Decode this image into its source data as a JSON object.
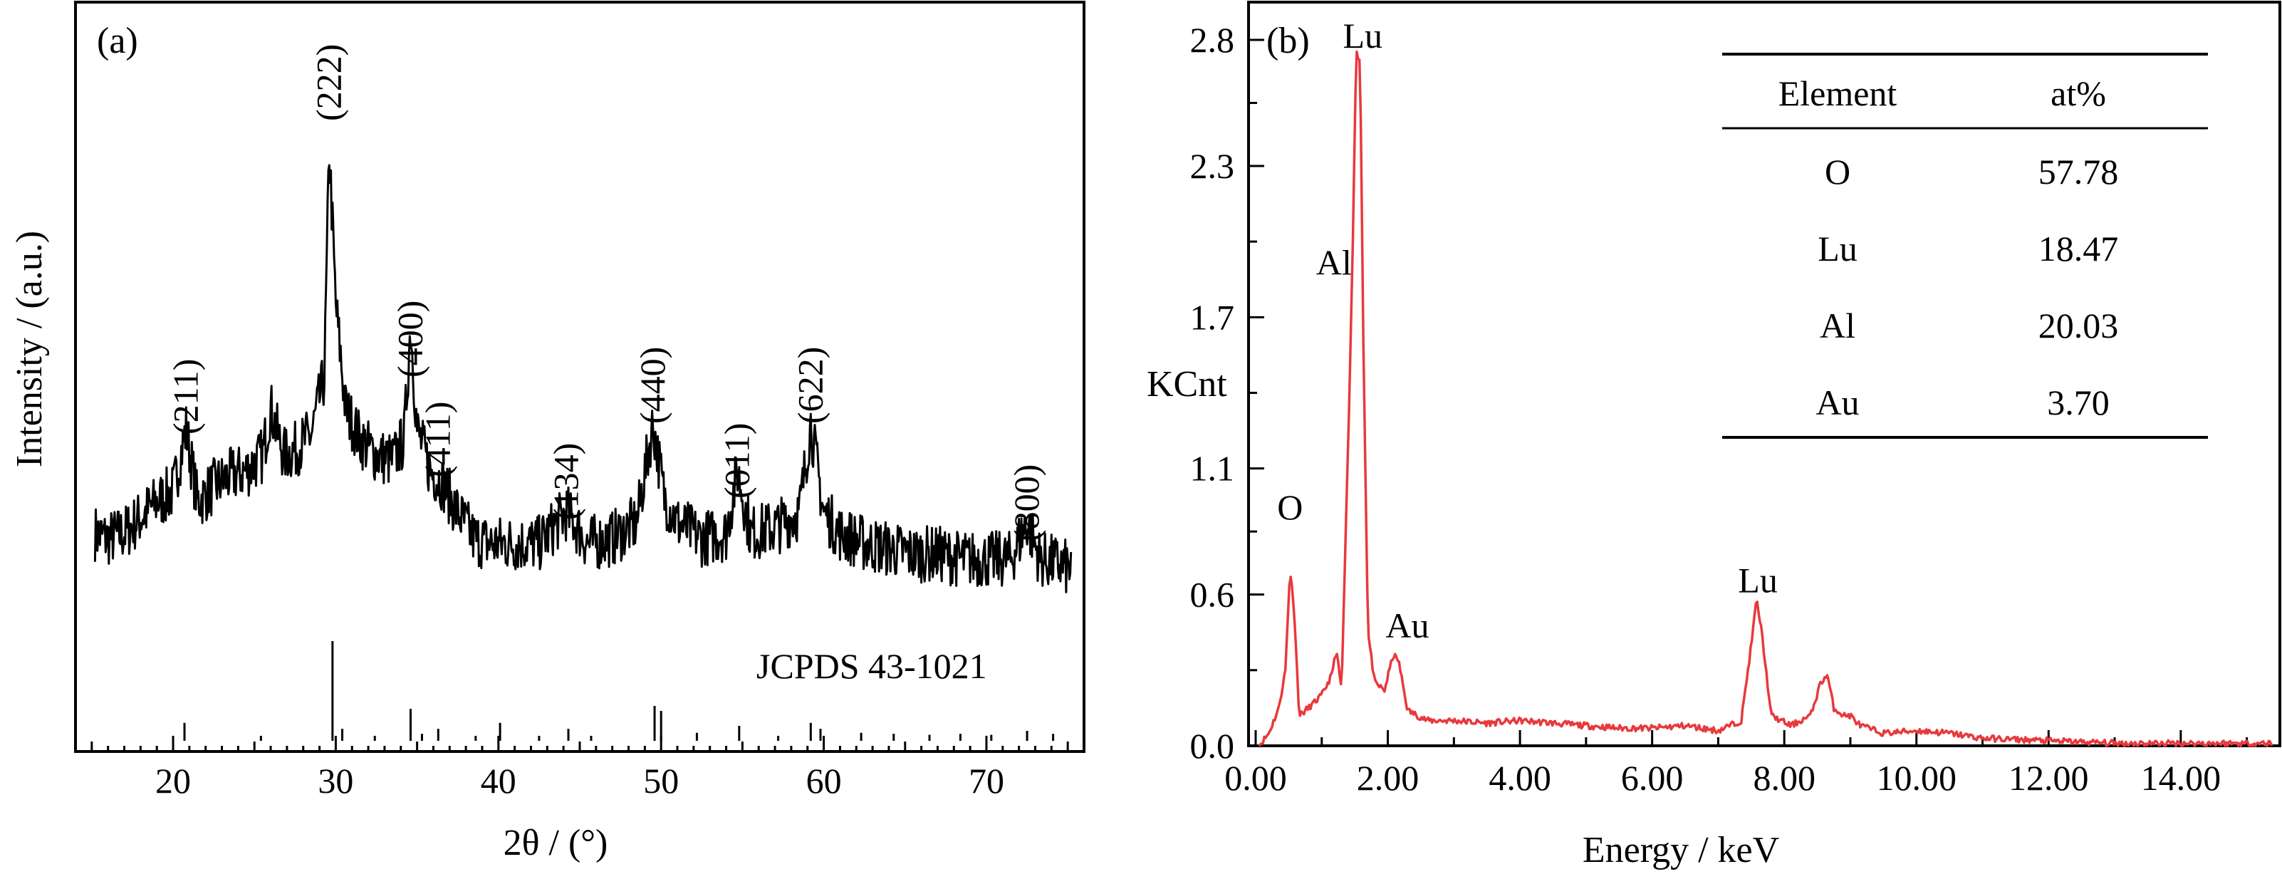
{
  "chart_data": [
    {
      "panel": "(a)",
      "type": "line",
      "xlabel": "2θ / (°)",
      "ylabel": "Intensity / (a.u.)",
      "xlim": [
        14,
        76
      ],
      "xticks": [
        20,
        30,
        40,
        50,
        60,
        70
      ],
      "yticks": [],
      "grid": false,
      "series": [
        {
          "values_kind": "xrd-pattern",
          "points": [
            [
              15.2,
              0.18
            ],
            [
              16,
              0.17
            ],
            [
              17,
              0.18
            ],
            [
              18,
              0.21
            ],
            [
              19,
              0.24
            ],
            [
              20,
              0.26
            ],
            [
              20.8,
              0.38
            ],
            [
              21.5,
              0.24
            ],
            [
              22.5,
              0.27
            ],
            [
              23.5,
              0.29
            ],
            [
              24.5,
              0.3
            ],
            [
              25.5,
              0.33
            ],
            [
              26,
              0.42
            ],
            [
              26.8,
              0.33
            ],
            [
              27.5,
              0.34
            ],
            [
              28.5,
              0.37
            ],
            [
              29.3,
              0.48
            ],
            [
              29.6,
              0.92
            ],
            [
              30,
              0.62
            ],
            [
              30.6,
              0.42
            ],
            [
              31.5,
              0.36
            ],
            [
              32.5,
              0.33
            ],
            [
              33.5,
              0.32
            ],
            [
              34.2,
              0.36
            ],
            [
              34.6,
              0.58
            ],
            [
              35,
              0.38
            ],
            [
              35.8,
              0.3
            ],
            [
              36.5,
              0.28
            ],
            [
              37.5,
              0.22
            ],
            [
              38.5,
              0.17
            ],
            [
              39.5,
              0.16
            ],
            [
              41,
              0.16
            ],
            [
              42.5,
              0.16
            ],
            [
              44.2,
              0.22
            ],
            [
              45.5,
              0.16
            ],
            [
              47,
              0.17
            ],
            [
              48.5,
              0.2
            ],
            [
              49.5,
              0.39
            ],
            [
              50.2,
              0.25
            ],
            [
              51,
              0.2
            ],
            [
              52.5,
              0.17
            ],
            [
              54,
              0.18
            ],
            [
              54.7,
              0.3
            ],
            [
              55.5,
              0.18
            ],
            [
              57,
              0.19
            ],
            [
              58.5,
              0.22
            ],
            [
              59.2,
              0.39
            ],
            [
              60,
              0.22
            ],
            [
              61,
              0.18
            ],
            [
              62.5,
              0.16
            ],
            [
              64,
              0.15
            ],
            [
              65.5,
              0.14
            ],
            [
              67,
              0.14
            ],
            [
              68.5,
              0.13
            ],
            [
              70,
              0.13
            ],
            [
              71.5,
              0.13
            ],
            [
              72.5,
              0.2
            ],
            [
              73.3,
              0.13
            ],
            [
              74.5,
              0.12
            ],
            [
              75.2,
              0.11
            ]
          ]
        }
      ],
      "annotations": [
        {
          "label": "(211)",
          "x": 20.8
        },
        {
          "label": "(222)",
          "x": 29.6
        },
        {
          "label": "(400)",
          "x": 34.6
        },
        {
          "label": "(411)",
          "x": 36.3
        },
        {
          "label": "(134)",
          "x": 44.2
        },
        {
          "label": "(440)",
          "x": 49.5
        },
        {
          "label": "(011)",
          "x": 54.7
        },
        {
          "label": "(622)",
          "x": 59.2
        },
        {
          "label": "(800)",
          "x": 72.5
        }
      ],
      "reference": {
        "label": "JCPDS 43-1021",
        "lines": [
          {
            "x": 20.7,
            "h": 0.18
          },
          {
            "x": 25.4,
            "h": 0.05
          },
          {
            "x": 29.8,
            "h": 1.0
          },
          {
            "x": 30.4,
            "h": 0.12
          },
          {
            "x": 32.4,
            "h": 0.05
          },
          {
            "x": 34.6,
            "h": 0.32
          },
          {
            "x": 35.3,
            "h": 0.07
          },
          {
            "x": 36.3,
            "h": 0.12
          },
          {
            "x": 38.6,
            "h": 0.05
          },
          {
            "x": 40.1,
            "h": 0.18
          },
          {
            "x": 42.5,
            "h": 0.05
          },
          {
            "x": 44.3,
            "h": 0.12
          },
          {
            "x": 45.7,
            "h": 0.05
          },
          {
            "x": 49.6,
            "h": 0.35
          },
          {
            "x": 50.0,
            "h": 0.3
          },
          {
            "x": 52.2,
            "h": 0.08
          },
          {
            "x": 54.8,
            "h": 0.15
          },
          {
            "x": 57.2,
            "h": 0.05
          },
          {
            "x": 59.2,
            "h": 0.18
          },
          {
            "x": 59.8,
            "h": 0.12
          },
          {
            "x": 62.3,
            "h": 0.08
          },
          {
            "x": 64.3,
            "h": 0.07
          },
          {
            "x": 66.5,
            "h": 0.06
          },
          {
            "x": 68.4,
            "h": 0.07
          },
          {
            "x": 70.3,
            "h": 0.06
          },
          {
            "x": 72.5,
            "h": 0.1
          },
          {
            "x": 74.1,
            "h": 0.07
          }
        ]
      },
      "line_color": "#000000"
    },
    {
      "panel": "(b)",
      "type": "line",
      "xlabel": "Energy / keV",
      "ylabel": "KCnt",
      "xlim": [
        0,
        15.5
      ],
      "ylim": [
        0,
        2.9
      ],
      "xticks": [
        0,
        2,
        4,
        6,
        8,
        10,
        12,
        14
      ],
      "xtick_labels": [
        "0.00",
        "2.00",
        "4.00",
        "6.00",
        "8.00",
        "10.00",
        "12.00",
        "14.00"
      ],
      "yticks": [
        0,
        0.6,
        1.1,
        1.7,
        2.3,
        2.8
      ],
      "ytick_labels": [
        "0.0",
        "0.6",
        "1.1",
        "1.7",
        "2.3",
        "2.8"
      ],
      "grid": false,
      "series": [
        {
          "points": [
            [
              0.05,
              0.0
            ],
            [
              0.2,
              0.05
            ],
            [
              0.35,
              0.15
            ],
            [
              0.45,
              0.3
            ],
            [
              0.52,
              0.7
            ],
            [
              0.58,
              0.55
            ],
            [
              0.66,
              0.12
            ],
            [
              0.8,
              0.15
            ],
            [
              1.0,
              0.2
            ],
            [
              1.15,
              0.28
            ],
            [
              1.22,
              0.38
            ],
            [
              1.3,
              0.22
            ],
            [
              1.42,
              1.4
            ],
            [
              1.47,
              2.0
            ],
            [
              1.52,
              2.75
            ],
            [
              1.58,
              2.72
            ],
            [
              1.63,
              1.6
            ],
            [
              1.7,
              0.45
            ],
            [
              1.8,
              0.25
            ],
            [
              1.95,
              0.22
            ],
            [
              2.08,
              0.36
            ],
            [
              2.16,
              0.34
            ],
            [
              2.3,
              0.14
            ],
            [
              2.6,
              0.1
            ],
            [
              3.0,
              0.1
            ],
            [
              3.5,
              0.09
            ],
            [
              4.0,
              0.1
            ],
            [
              4.5,
              0.09
            ],
            [
              5.0,
              0.08
            ],
            [
              5.5,
              0.07
            ],
            [
              6.0,
              0.07
            ],
            [
              6.5,
              0.08
            ],
            [
              7.0,
              0.06
            ],
            [
              7.35,
              0.1
            ],
            [
              7.5,
              0.4
            ],
            [
              7.58,
              0.58
            ],
            [
              7.66,
              0.45
            ],
            [
              7.8,
              0.12
            ],
            [
              8.1,
              0.08
            ],
            [
              8.4,
              0.12
            ],
            [
              8.55,
              0.25
            ],
            [
              8.65,
              0.28
            ],
            [
              8.75,
              0.15
            ],
            [
              8.9,
              0.12
            ],
            [
              9.0,
              0.12
            ],
            [
              9.15,
              0.08
            ],
            [
              9.5,
              0.05
            ],
            [
              10.0,
              0.06
            ],
            [
              10.5,
              0.05
            ],
            [
              11.0,
              0.03
            ],
            [
              12.0,
              0.02
            ],
            [
              13.0,
              0.01
            ],
            [
              14.0,
              0.01
            ],
            [
              15.4,
              0.01
            ]
          ]
        }
      ],
      "annotations": [
        {
          "label": "O",
          "x": 0.52,
          "y": 0.7
        },
        {
          "label": "Lu",
          "x": 1.55,
          "y": 2.75
        },
        {
          "label": "Al",
          "x": 1.45,
          "y": 1.9
        },
        {
          "label": "Au",
          "x": 2.1,
          "y": 0.38
        },
        {
          "label": "Lu",
          "x": 7.58,
          "y": 0.58
        }
      ],
      "table": {
        "columns": [
          "Element",
          "at%"
        ],
        "rows": [
          [
            "O",
            "57.78"
          ],
          [
            "Lu",
            "18.47"
          ],
          [
            "Al",
            "20.03"
          ],
          [
            "Au",
            "3.70"
          ]
        ]
      },
      "line_color": "#e8393d"
    }
  ]
}
